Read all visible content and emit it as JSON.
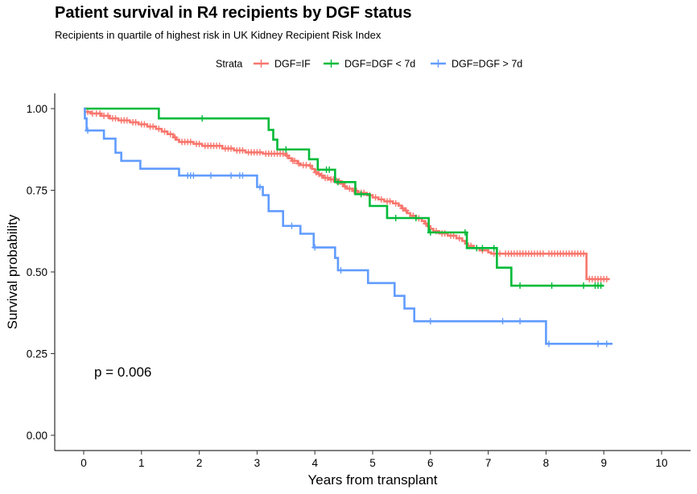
{
  "chart_data": {
    "type": "line",
    "title": "Patient survival in R4 recipients by DGF status",
    "subtitle": "Recipients in quartile of highest risk in UK Kidney Recipient Risk Index",
    "xlabel": "Years from transplant",
    "ylabel": "Survival probability",
    "xlim": [
      0,
      10
    ],
    "ylim": [
      0,
      1
    ],
    "x_ticks": [
      "0",
      "1",
      "2",
      "3",
      "4",
      "5",
      "6",
      "7",
      "8",
      "9",
      "10"
    ],
    "y_ticks": [
      "0.00",
      "0.25",
      "0.50",
      "0.75",
      "1.00"
    ],
    "grid": false,
    "legend": {
      "title": "Strata",
      "position": "top"
    },
    "annotation": "p = 0.006",
    "series": [
      {
        "name": "DGF=IF",
        "color": "#F8766D",
        "steps": [
          [
            0,
            1.0
          ],
          [
            0.02,
            0.99
          ],
          [
            0.12,
            0.985
          ],
          [
            0.3,
            0.978
          ],
          [
            0.45,
            0.97
          ],
          [
            0.6,
            0.964
          ],
          [
            0.8,
            0.958
          ],
          [
            0.95,
            0.952
          ],
          [
            1.1,
            0.945
          ],
          [
            1.25,
            0.938
          ],
          [
            1.35,
            0.93
          ],
          [
            1.45,
            0.922
          ],
          [
            1.55,
            0.912
          ],
          [
            1.6,
            0.905
          ],
          [
            1.65,
            0.898
          ],
          [
            1.9,
            0.892
          ],
          [
            2.05,
            0.886
          ],
          [
            2.4,
            0.878
          ],
          [
            2.6,
            0.872
          ],
          [
            2.8,
            0.866
          ],
          [
            3.1,
            0.862
          ],
          [
            3.5,
            0.856
          ],
          [
            3.55,
            0.848
          ],
          [
            3.6,
            0.84
          ],
          [
            3.7,
            0.832
          ],
          [
            3.75,
            0.827
          ],
          [
            3.9,
            0.825
          ],
          [
            3.95,
            0.815
          ],
          [
            4.0,
            0.805
          ],
          [
            4.05,
            0.8
          ],
          [
            4.1,
            0.795
          ],
          [
            4.15,
            0.788
          ],
          [
            4.25,
            0.783
          ],
          [
            4.35,
            0.778
          ],
          [
            4.45,
            0.77
          ],
          [
            4.5,
            0.762
          ],
          [
            4.55,
            0.755
          ],
          [
            4.65,
            0.748
          ],
          [
            4.75,
            0.742
          ],
          [
            4.9,
            0.735
          ],
          [
            5.0,
            0.728
          ],
          [
            5.1,
            0.722
          ],
          [
            5.2,
            0.716
          ],
          [
            5.35,
            0.71
          ],
          [
            5.45,
            0.703
          ],
          [
            5.5,
            0.695
          ],
          [
            5.55,
            0.688
          ],
          [
            5.6,
            0.68
          ],
          [
            5.65,
            0.672
          ],
          [
            5.75,
            0.664
          ],
          [
            5.85,
            0.656
          ],
          [
            5.9,
            0.648
          ],
          [
            5.95,
            0.64
          ],
          [
            6.0,
            0.632
          ],
          [
            6.05,
            0.625
          ],
          [
            6.15,
            0.618
          ],
          [
            6.3,
            0.611
          ],
          [
            6.45,
            0.603
          ],
          [
            6.55,
            0.595
          ],
          [
            6.6,
            0.587
          ],
          [
            6.65,
            0.58
          ],
          [
            6.75,
            0.573
          ],
          [
            6.85,
            0.566
          ],
          [
            7.0,
            0.56
          ],
          [
            7.05,
            0.556
          ],
          [
            8.7,
            0.478
          ],
          [
            9.1,
            0.478
          ]
        ],
        "censors": [
          0.07,
          0.15,
          0.22,
          0.28,
          0.35,
          0.42,
          0.5,
          0.55,
          0.65,
          0.7,
          0.75,
          0.85,
          0.9,
          1.0,
          1.05,
          1.15,
          1.2,
          1.3,
          1.4,
          1.5,
          1.58,
          1.7,
          1.75,
          1.8,
          1.85,
          1.95,
          2.0,
          2.1,
          2.15,
          2.2,
          2.25,
          2.3,
          2.35,
          2.45,
          2.5,
          2.55,
          2.65,
          2.7,
          2.75,
          2.85,
          2.9,
          2.95,
          3.0,
          3.05,
          3.15,
          3.2,
          3.25,
          3.3,
          3.35,
          3.4,
          3.45,
          3.52,
          3.62,
          3.65,
          3.72,
          3.8,
          3.85,
          3.92,
          4.02,
          4.07,
          4.12,
          4.18,
          4.22,
          4.28,
          4.32,
          4.38,
          4.42,
          4.48,
          4.52,
          4.6,
          4.68,
          4.72,
          4.8,
          4.85,
          4.95,
          5.05,
          5.15,
          5.25,
          5.3,
          5.4,
          5.52,
          5.58,
          5.7,
          5.8,
          5.92,
          6.1,
          6.2,
          6.25,
          6.35,
          6.4,
          6.5,
          6.7,
          6.8,
          6.9,
          7.1,
          7.15,
          7.2,
          7.3,
          7.35,
          7.4,
          7.45,
          7.5,
          7.55,
          7.6,
          7.65,
          7.7,
          7.75,
          7.8,
          7.85,
          7.9,
          7.95,
          8.05,
          8.1,
          8.15,
          8.2,
          8.25,
          8.3,
          8.35,
          8.4,
          8.45,
          8.5,
          8.55,
          8.6,
          8.65,
          8.75,
          8.8,
          8.85,
          8.9,
          8.95,
          9.0,
          9.05
        ]
      },
      {
        "name": "DGF=DGF < 7d",
        "color": "#00BA38",
        "steps": [
          [
            0,
            1.0
          ],
          [
            1.3,
            0.97
          ],
          [
            3.2,
            0.935
          ],
          [
            3.28,
            0.905
          ],
          [
            3.35,
            0.875
          ],
          [
            3.9,
            0.845
          ],
          [
            4.05,
            0.813
          ],
          [
            4.35,
            0.775
          ],
          [
            4.7,
            0.738
          ],
          [
            4.95,
            0.702
          ],
          [
            5.25,
            0.665
          ],
          [
            5.97,
            0.621
          ],
          [
            6.63,
            0.573
          ],
          [
            7.15,
            0.513
          ],
          [
            7.4,
            0.458
          ],
          [
            9.0,
            0.458
          ]
        ],
        "censors": [
          2.05,
          3.5,
          4.2,
          4.25,
          4.4,
          4.8,
          5.4,
          5.75,
          6.0,
          6.6,
          6.8,
          6.9,
          7.1,
          7.55,
          8.1,
          8.65,
          8.85,
          8.9,
          8.95
        ]
      },
      {
        "name": "DGF=DGF > 7d",
        "color": "#619CFF",
        "steps": [
          [
            0,
            1.0
          ],
          [
            0.02,
            0.97
          ],
          [
            0.05,
            0.933
          ],
          [
            0.35,
            0.908
          ],
          [
            0.55,
            0.865
          ],
          [
            0.65,
            0.84
          ],
          [
            0.98,
            0.816
          ],
          [
            1.65,
            0.795
          ],
          [
            3.0,
            0.76
          ],
          [
            3.1,
            0.735
          ],
          [
            3.2,
            0.686
          ],
          [
            3.45,
            0.641
          ],
          [
            3.75,
            0.617
          ],
          [
            3.98,
            0.575
          ],
          [
            4.35,
            0.543
          ],
          [
            4.4,
            0.505
          ],
          [
            4.92,
            0.466
          ],
          [
            5.38,
            0.427
          ],
          [
            5.55,
            0.388
          ],
          [
            5.72,
            0.349
          ],
          [
            8.0,
            0.28
          ],
          [
            9.15,
            0.28
          ]
        ],
        "censors": [
          0.07,
          1.8,
          1.85,
          1.9,
          2.2,
          2.55,
          2.7,
          2.75,
          3.05,
          3.6,
          4.0,
          4.45,
          6.0,
          7.25,
          7.55,
          8.05,
          8.9,
          9.05
        ]
      }
    ]
  }
}
